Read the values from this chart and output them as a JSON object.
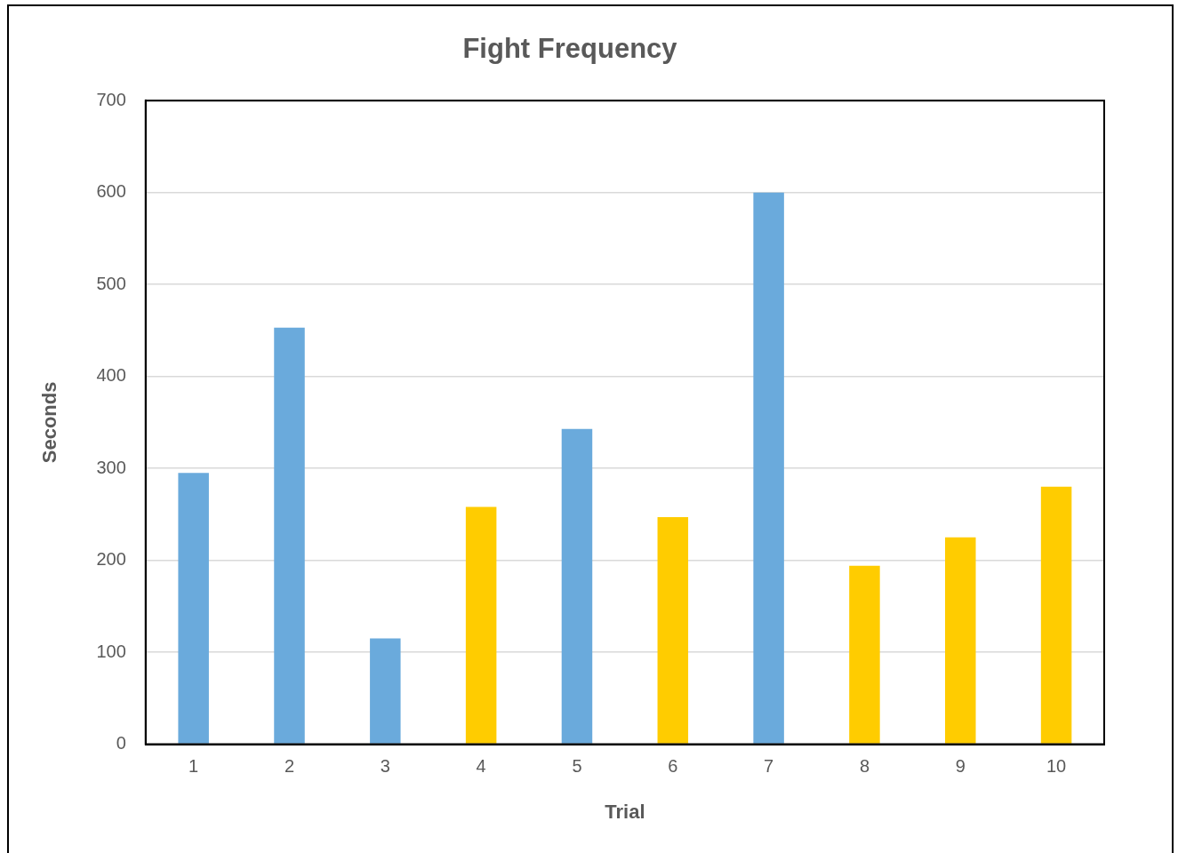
{
  "chart_data": {
    "type": "bar",
    "title": "Fight Frequency",
    "xlabel": "Trial",
    "ylabel": "Seconds",
    "categories": [
      "1",
      "2",
      "3",
      "4",
      "5",
      "6",
      "7",
      "8",
      "9",
      "10"
    ],
    "values": [
      295,
      453,
      115,
      258,
      343,
      247,
      600,
      194,
      225,
      280
    ],
    "colors": [
      "#6aaadc",
      "#6aaadc",
      "#6aaadc",
      "#ffcc00",
      "#6aaadc",
      "#ffcc00",
      "#6aaadc",
      "#ffcc00",
      "#ffcc00",
      "#ffcc00"
    ],
    "ylim": [
      0,
      700
    ],
    "yticks": [
      0,
      100,
      200,
      300,
      400,
      500,
      600,
      700
    ],
    "grid": "y",
    "legend": false
  }
}
